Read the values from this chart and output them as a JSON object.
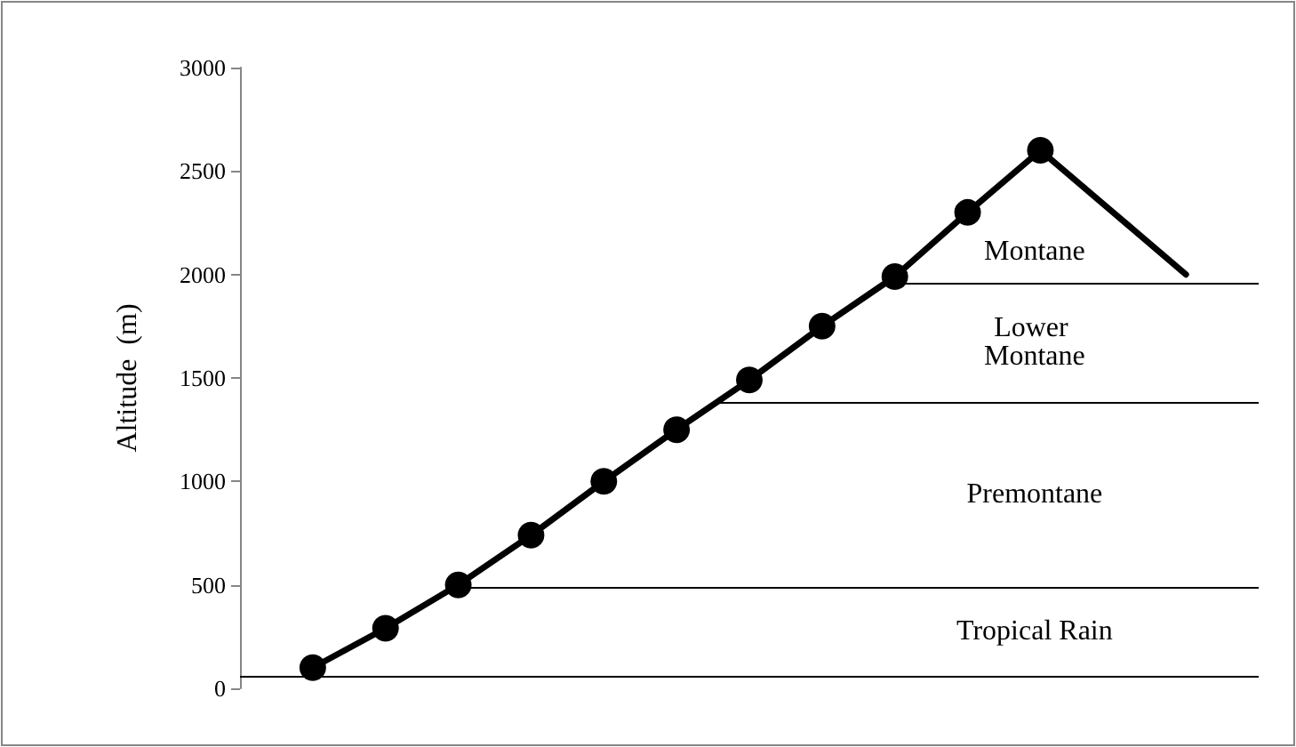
{
  "chart_data": {
    "type": "line",
    "ylabel": "Altitude  (m)",
    "categories": [
      null,
      null,
      null,
      null,
      null,
      null,
      null,
      null,
      null,
      null,
      null,
      null,
      null,
      null,
      null
    ],
    "series": [
      {
        "color": "#000000",
        "marker": "circle",
        "values": [
          null,
          100,
          290,
          500,
          740,
          1000,
          1250,
          1490,
          1750,
          1990,
          2300,
          2600,
          null,
          null,
          null
        ]
      },
      {
        "color": "#000000",
        "marker": "none",
        "values": [
          null,
          null,
          null,
          null,
          null,
          null,
          null,
          null,
          null,
          null,
          null,
          2600,
          2300,
          2000,
          null
        ]
      }
    ],
    "ylim": [
      0,
      3000
    ],
    "yticks": [
      0,
      500,
      1000,
      1500,
      2000,
      2500,
      3000
    ],
    "grid": false,
    "line_style": "solid",
    "ref_lines": [
      {
        "axis": "y",
        "value": 60,
        "label": "Tropical Rain",
        "color": "#000000"
      },
      {
        "axis": "y",
        "value": 490,
        "label": "Premontane",
        "color": "#000000"
      },
      {
        "axis": "y",
        "value": 1380,
        "label": "Lower Montane",
        "color": "#000000"
      },
      {
        "axis": "y",
        "value": 1960,
        "label": "Montane",
        "color": "#000000"
      }
    ]
  }
}
